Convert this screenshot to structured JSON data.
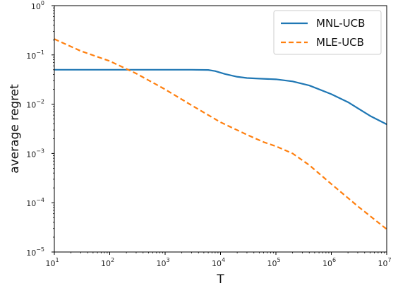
{
  "chart_data": {
    "type": "line",
    "xscale": "log",
    "yscale": "log",
    "xlim": [
      10,
      10000000
    ],
    "ylim": [
      1e-05,
      1
    ],
    "xlabel": "T",
    "ylabel": "average regret",
    "grid": false,
    "legend_position": "top-right",
    "x_ticks": [
      {
        "base": "10",
        "exp": "1",
        "value": 10
      },
      {
        "base": "10",
        "exp": "2",
        "value": 100
      },
      {
        "base": "10",
        "exp": "3",
        "value": 1000
      },
      {
        "base": "10",
        "exp": "4",
        "value": 10000
      },
      {
        "base": "10",
        "exp": "5",
        "value": 100000
      },
      {
        "base": "10",
        "exp": "6",
        "value": 1000000
      },
      {
        "base": "10",
        "exp": "7",
        "value": 10000000
      }
    ],
    "y_ticks": [
      {
        "base": "10",
        "exp": "0",
        "value": 1
      },
      {
        "base": "10",
        "exp": "−1",
        "value": 0.1
      },
      {
        "base": "10",
        "exp": "−2",
        "value": 0.01
      },
      {
        "base": "10",
        "exp": "−3",
        "value": 0.001
      },
      {
        "base": "10",
        "exp": "−4",
        "value": 0.0001
      },
      {
        "base": "10",
        "exp": "−5",
        "value": 1e-05
      }
    ],
    "series": [
      {
        "name": "MNL-UCB",
        "color": "#1f77b4",
        "dash": "solid",
        "points": [
          [
            10,
            0.05
          ],
          [
            100,
            0.05
          ],
          [
            1000,
            0.05
          ],
          [
            3000,
            0.05
          ],
          [
            6000,
            0.0495
          ],
          [
            8000,
            0.047
          ],
          [
            12000,
            0.041
          ],
          [
            20000,
            0.036
          ],
          [
            30000,
            0.034
          ],
          [
            50000,
            0.033
          ],
          [
            70000,
            0.0325
          ],
          [
            100000,
            0.032
          ],
          [
            200000,
            0.029
          ],
          [
            400000,
            0.024
          ],
          [
            1000000,
            0.016
          ],
          [
            2000000,
            0.011
          ],
          [
            5000000,
            0.0058
          ],
          [
            10000000,
            0.0039
          ]
        ]
      },
      {
        "name": "MLE-UCB",
        "color": "#ff7f0e",
        "dash": "dashed",
        "points": [
          [
            10,
            0.21
          ],
          [
            30,
            0.12
          ],
          [
            100,
            0.075
          ],
          [
            300,
            0.042
          ],
          [
            1000,
            0.02
          ],
          [
            3000,
            0.0095
          ],
          [
            10000,
            0.0043
          ],
          [
            30000,
            0.0024
          ],
          [
            60000,
            0.0017
          ],
          [
            100000,
            0.0014
          ],
          [
            200000,
            0.001
          ],
          [
            400000,
            0.00058
          ],
          [
            1000000,
            0.00024
          ],
          [
            3000000,
            8.5e-05
          ],
          [
            10000000,
            2.9e-05
          ]
        ]
      }
    ]
  }
}
